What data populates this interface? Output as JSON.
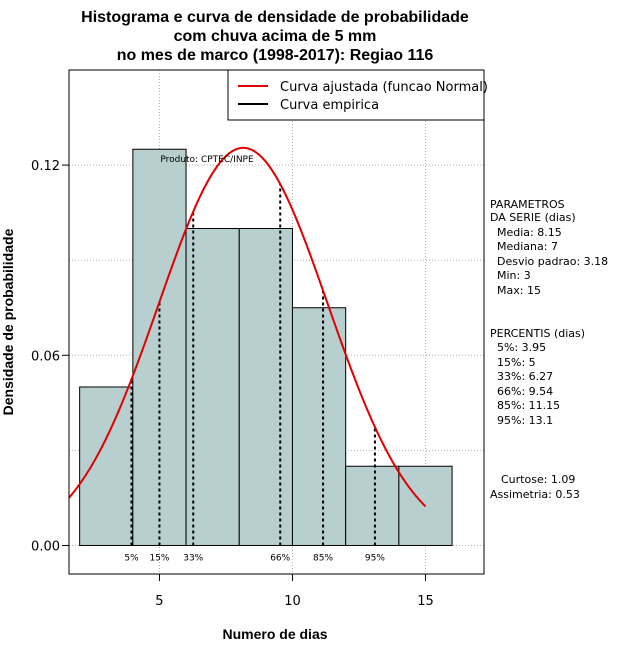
{
  "chart_data": {
    "type": "histogram",
    "title": [
      "Histograma e curva de densidade de probabilidade",
      "com chuva acima de 5 mm",
      "no mes de marco (1998-2017): Regiao 116"
    ],
    "xlabel": "Numero de dias",
    "ylabel": "Densidade de probabilidade",
    "xlim": [
      1.6,
      17.2
    ],
    "ylim": [
      -0.009,
      0.15
    ],
    "x_ticks": [
      5,
      10,
      15
    ],
    "y_ticks": [
      {
        "value": 0.0,
        "label": "0.00"
      },
      {
        "value": 0.06,
        "label": "0.06"
      },
      {
        "value": 0.12,
        "label": "0.12"
      }
    ],
    "grid": true,
    "bars": [
      {
        "x0": 2,
        "x1": 4,
        "density": 0.05
      },
      {
        "x0": 4,
        "x1": 6,
        "density": 0.125
      },
      {
        "x0": 6,
        "x1": 8,
        "density": 0.1
      },
      {
        "x0": 8,
        "x1": 10,
        "density": 0.1
      },
      {
        "x0": 10,
        "x1": 12,
        "density": 0.075
      },
      {
        "x0": 12,
        "x1": 14,
        "density": 0.025
      },
      {
        "x0": 14,
        "x1": 16,
        "density": 0.025
      }
    ],
    "bar_color": "#b7cfcf",
    "normal_curve": {
      "name": "Curva ajustada (funcao Normal)",
      "color": "#e00000",
      "mean": 8.15,
      "sd": 3.18,
      "x_range": [
        1.6,
        15
      ]
    },
    "percentile_lines": [
      {
        "x": 3.95,
        "label": "5%"
      },
      {
        "x": 5,
        "label": "15%"
      },
      {
        "x": 6.27,
        "label": "33%"
      },
      {
        "x": 9.54,
        "label": "66%"
      },
      {
        "x": 11.15,
        "label": "85%"
      },
      {
        "x": 13.1,
        "label": "95%"
      }
    ],
    "legend": {
      "position": "top-right",
      "entries": [
        {
          "label": "Curva ajustada (funcao Normal)",
          "color": "#e00000"
        },
        {
          "label": "Curva empirica",
          "color": "#000000"
        }
      ]
    },
    "product_label": "Produto: CPTEC/INPE",
    "parameters": {
      "heading": [
        "PARAMETROS",
        "DA SERIE (dias)"
      ],
      "lines": [
        "Media: 8.15",
        "Mediana: 7",
        "Desvio padrao: 3.18",
        "Min: 3",
        "Max: 15"
      ]
    },
    "percentiles": {
      "heading": "PERCENTIS (dias)",
      "lines": [
        "5%: 3.95",
        "15%: 5",
        "33%: 6.27",
        "66%: 9.54",
        "85%: 11.15",
        "95%: 13.1"
      ]
    },
    "shape": {
      "lines": [
        "Curtose: 1.09",
        "Assimetria: 0.53"
      ]
    }
  }
}
